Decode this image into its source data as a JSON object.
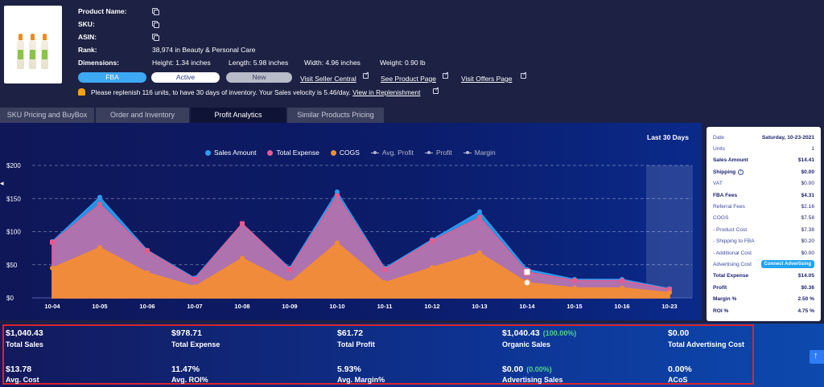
{
  "product": {
    "name_label": "Product Name:",
    "sku_label": "SKU:",
    "asin_label": "ASIN:",
    "rank_label": "Rank:",
    "rank_value": "38,974 in Beauty & Personal Care",
    "dimensions_label": "Dimensions:",
    "height": "Height: 1.34 inches",
    "length": "Length: 5.98 inches",
    "width": "Width: 4.96 inches",
    "weight": "Weight: 0.90 lb"
  },
  "badges": {
    "fba": "FBA",
    "active": "Active",
    "new": "New"
  },
  "links": {
    "seller_central": "Visit Seller Central",
    "product_page": "See Product Page",
    "offers_page": "Visit Offers Page"
  },
  "notice": {
    "text": "Please replenish 116 units, to have 30 days of inventory. Your Sales velocity is 5.46/day.",
    "link": "View in Replenishment"
  },
  "tabs": [
    {
      "label": "SKU Pricing and BuyBox"
    },
    {
      "label": "Order and Inventory"
    },
    {
      "label": "Profit Analytics"
    },
    {
      "label": "Similar Products Pricing"
    }
  ],
  "chart": {
    "range_label": "Last 30 Days"
  },
  "legend": [
    {
      "label": "Sales Amount",
      "color": "#2f9cf0"
    },
    {
      "label": "Total Expense",
      "color": "#e85a8e"
    },
    {
      "label": "COGS",
      "color": "#f28c34"
    },
    {
      "label": "Avg. Profit"
    },
    {
      "label": "Profit"
    },
    {
      "label": "Margin"
    }
  ],
  "chart_data": {
    "type": "area",
    "x": [
      "10-04",
      "10-05",
      "10-06",
      "10-07",
      "10-08",
      "10-09",
      "10-10",
      "10-11",
      "10-12",
      "10-13",
      "10-14",
      "10-15",
      "10-16",
      "10-23"
    ],
    "ylim": [
      0,
      200
    ],
    "yticks": [
      "$0",
      "$50",
      "$100",
      "$150",
      "$200"
    ],
    "series": [
      {
        "name": "Sales Amount",
        "color": "#2f9cf0",
        "values": [
          85,
          152,
          72,
          30,
          112,
          45,
          160,
          45,
          88,
          130,
          43,
          28,
          28,
          14
        ]
      },
      {
        "name": "Total Expense",
        "color": "#e85a8e",
        "values": [
          84,
          141,
          71,
          28,
          112,
          43,
          154,
          43,
          86,
          121,
          39,
          26,
          26,
          13
        ]
      },
      {
        "name": "COGS",
        "color": "#f28c34",
        "values": [
          45,
          76,
          38,
          17,
          60,
          23,
          83,
          23,
          46,
          68,
          23,
          15,
          15,
          8
        ]
      }
    ],
    "highlight_x": "10-23"
  },
  "tooltip": {
    "rows": [
      {
        "k": "Date",
        "v": "Saturday, 10-23-2021",
        "bold_v": true
      },
      {
        "k": "Units",
        "v": "1"
      },
      {
        "k": "Sales Amount",
        "v": "$14.41",
        "bold": true
      },
      {
        "k": "Shipping",
        "v": "$0.00",
        "bold": true,
        "info": true
      },
      {
        "k": "VAT",
        "v": "$0.00"
      },
      {
        "k": "FBA Fees",
        "v": "$4.31",
        "bold": true
      },
      {
        "k": "Referral Fees",
        "v": "$2.16"
      },
      {
        "k": "COGS",
        "v": "$7.58"
      },
      {
        "k": "- Product Cost",
        "v": "$7.38"
      },
      {
        "k": "- Shipping to FBA",
        "v": "$0.20"
      },
      {
        "k": "- Additional Cost",
        "v": "$0.00"
      },
      {
        "k": "Advertising Cost",
        "v": ""
      },
      {
        "k": "Total Expense",
        "v": "$14.05",
        "bold": true
      },
      {
        "k": "Profit",
        "v": "$0.36",
        "bold": true
      },
      {
        "k": "Margin %",
        "v": "2.50 %",
        "bold": true
      },
      {
        "k": "ROI %",
        "v": "4.75 %",
        "bold": true
      }
    ],
    "connect_label": "Connect Advertising"
  },
  "metrics": [
    {
      "value": "$1,040.43",
      "label": "Total Sales"
    },
    {
      "value": "$978.71",
      "label": "Total Expense"
    },
    {
      "value": "$61.72",
      "label": "Total Profit"
    },
    {
      "value": "$1,040.43",
      "pct": "(100.00%)",
      "label": "Organic Sales"
    },
    {
      "value": "$0.00",
      "label": "Total Advertising Cost"
    },
    {
      "value": "$13.78",
      "label": "Avg. Cost"
    },
    {
      "value": "11.47%",
      "label": "Avg. ROI%"
    },
    {
      "value": "5.93%",
      "label": "Avg. Margin%"
    },
    {
      "value": "$0.00",
      "pct": "(0.00%)",
      "label": "Advertising Sales"
    },
    {
      "value": "0.00%",
      "label": "ACoS"
    }
  ]
}
